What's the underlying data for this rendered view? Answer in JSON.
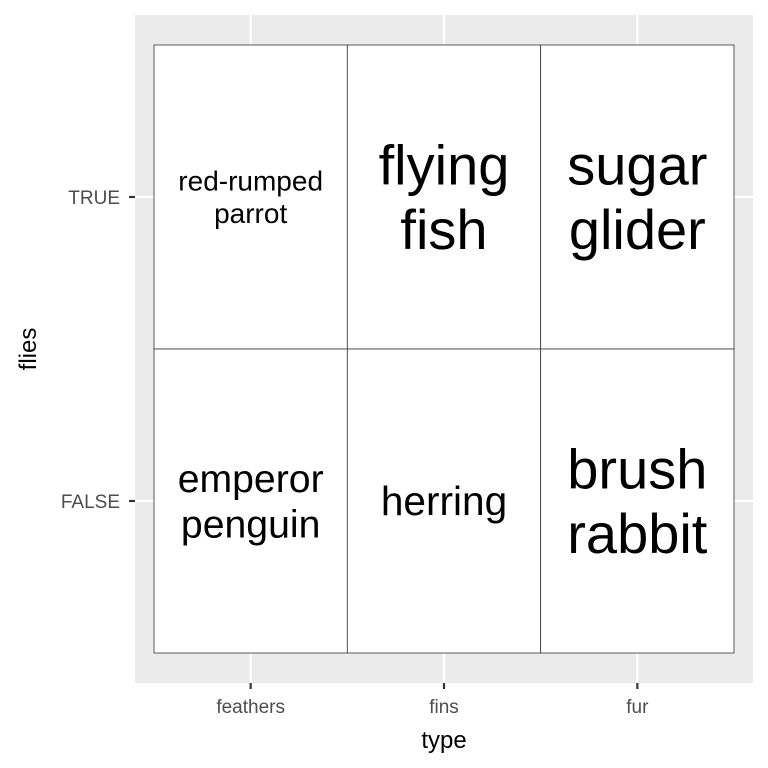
{
  "chart_data": {
    "type": "table",
    "title": "",
    "xlabel": "type",
    "ylabel": "flies",
    "x_categories": [
      "feathers",
      "fins",
      "fur"
    ],
    "y_categories": [
      "FALSE",
      "TRUE"
    ],
    "cells": [
      {
        "type": "feathers",
        "flies": "TRUE",
        "label": "red-rumped parrot",
        "lines": [
          "red-rumped",
          "parrot"
        ],
        "size": 1
      },
      {
        "type": "fins",
        "flies": "TRUE",
        "label": "flying fish",
        "lines": [
          "flying",
          "fish"
        ],
        "size": 2
      },
      {
        "type": "fur",
        "flies": "TRUE",
        "label": "sugar glider",
        "lines": [
          "sugar",
          "glider"
        ],
        "size": 2
      },
      {
        "type": "feathers",
        "flies": "FALSE",
        "label": "emperor penguin",
        "lines": [
          "emperor",
          "penguin"
        ],
        "size": 1.4
      },
      {
        "type": "fins",
        "flies": "FALSE",
        "label": "herring",
        "lines": [
          "herring"
        ],
        "size": 1.45
      },
      {
        "type": "fur",
        "flies": "FALSE",
        "label": "brush rabbit",
        "lines": [
          "brush",
          "rabbit"
        ],
        "size": 2
      }
    ],
    "panel_background": "#ebebeb",
    "grid_color": "#ffffff",
    "cell_fill": "#ffffff",
    "cell_border": "#333333",
    "grid": true,
    "legend": "none"
  }
}
